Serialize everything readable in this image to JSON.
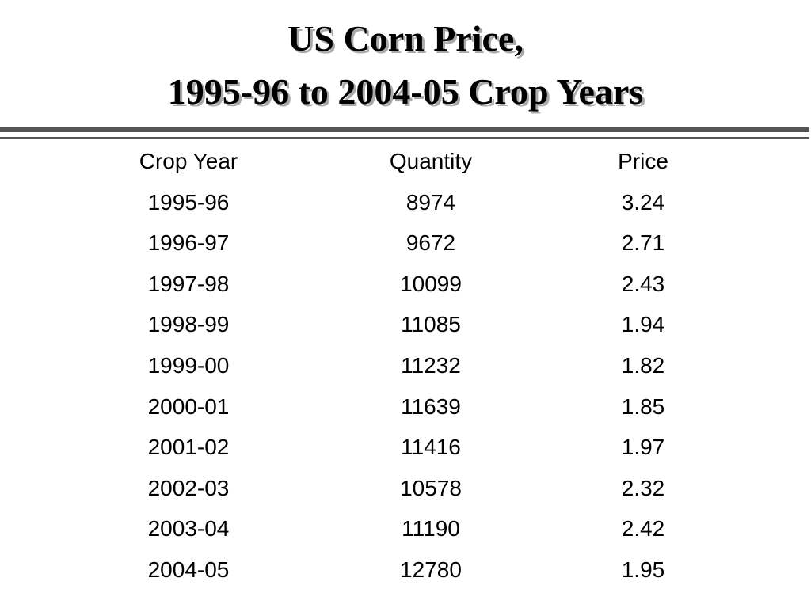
{
  "header": {
    "title": [
      "US Corn Price,",
      "1995-96 to 2004-05 Crop Years"
    ]
  },
  "table": {
    "columns": [
      "Crop Year",
      "Quantity",
      "Price"
    ],
    "rows": [
      [
        "1995-96",
        8974,
        3.24
      ],
      [
        "1996-97",
        9672,
        2.71
      ],
      [
        "1997-98",
        10099,
        2.43
      ],
      [
        "1998-99",
        11085,
        1.94
      ],
      [
        "1999-00",
        11232,
        1.82
      ],
      [
        "2000-01",
        11639,
        1.85
      ],
      [
        "2001-02",
        11416,
        1.97
      ],
      [
        "2002-03",
        10578,
        2.32
      ],
      [
        "2003-04",
        11190,
        2.42
      ],
      [
        "2004-05",
        12780,
        1.95
      ]
    ]
  }
}
